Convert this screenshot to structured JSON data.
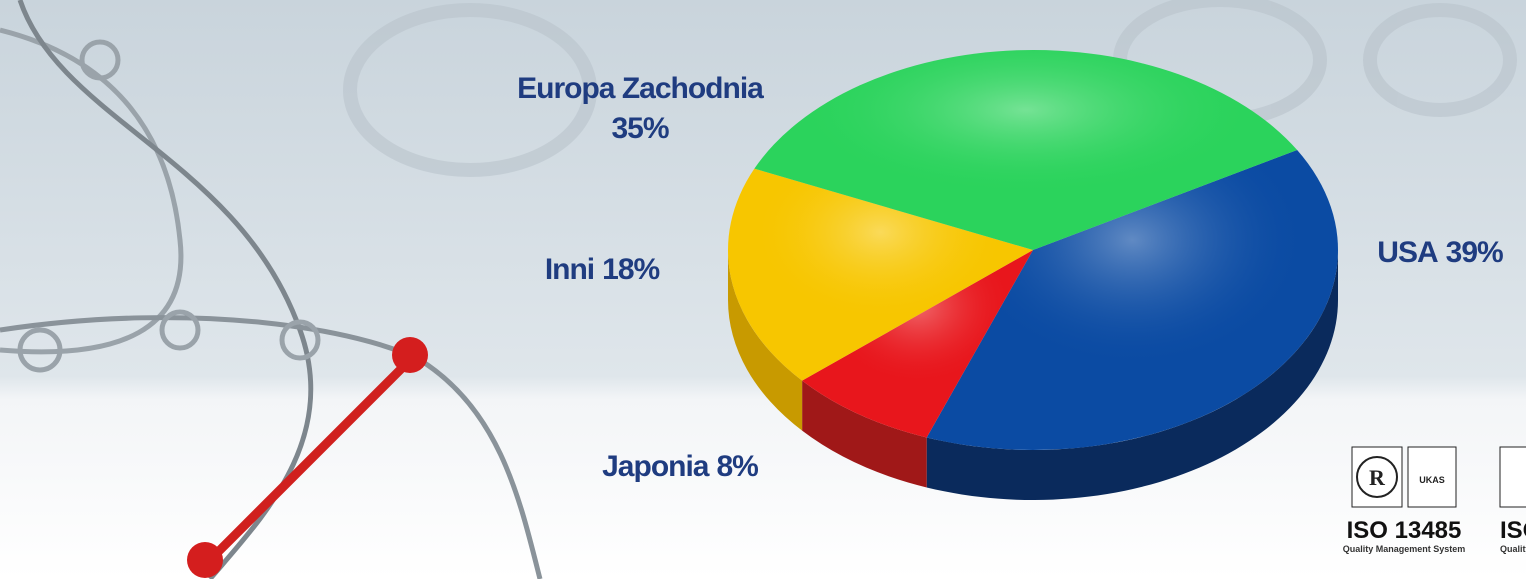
{
  "chart_data": {
    "type": "pie3d",
    "categories": [
      "USA",
      "Japonia",
      "Inni",
      "Europa Zachodnia"
    ],
    "values": [
      39,
      8,
      18,
      35
    ],
    "value_labels": [
      "39%",
      "8%",
      "18%",
      "35%"
    ],
    "colors": [
      "#0b4ba3",
      "#e8161c",
      "#f7c600",
      "#2bd35c"
    ],
    "side_colors": [
      "#0a2a5c",
      "#a01818",
      "#c89a00",
      "#1a8a3a"
    ]
  },
  "certificates": {
    "title": "ISO 13485",
    "subtitle": "Quality Management System",
    "badge": "UKAS"
  }
}
